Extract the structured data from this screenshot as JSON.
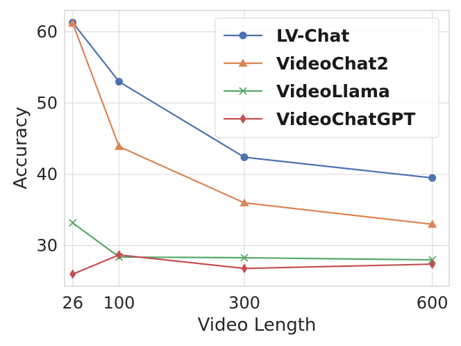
{
  "chart_data": {
    "type": "line",
    "xlabel": "Video Length",
    "ylabel": "Accuracy",
    "x": [
      26,
      100,
      300,
      600
    ],
    "x_ticks": [
      "26",
      "100",
      "300",
      "600"
    ],
    "y_ticks": [
      "30",
      "40",
      "50",
      "60"
    ],
    "xlim": [
      13,
      627
    ],
    "ylim": [
      24.3,
      63.0
    ],
    "grid": true,
    "legend_position": "top-right",
    "series": [
      {
        "name": "LV-Chat",
        "values": [
          61.3,
          53.0,
          42.4,
          39.5
        ],
        "color": "#4c72b0",
        "marker": "circle"
      },
      {
        "name": "VideoChat2",
        "values": [
          61.2,
          43.9,
          36.0,
          33.0
        ],
        "color": "#dd8452",
        "marker": "triangle"
      },
      {
        "name": "VideoLlama",
        "values": [
          33.2,
          28.4,
          28.3,
          28.0
        ],
        "color": "#55a868",
        "marker": "x"
      },
      {
        "name": "VideoChatGPT",
        "values": [
          26.0,
          28.7,
          26.8,
          27.4
        ],
        "color": "#c44e52",
        "marker": "diamond"
      }
    ]
  }
}
